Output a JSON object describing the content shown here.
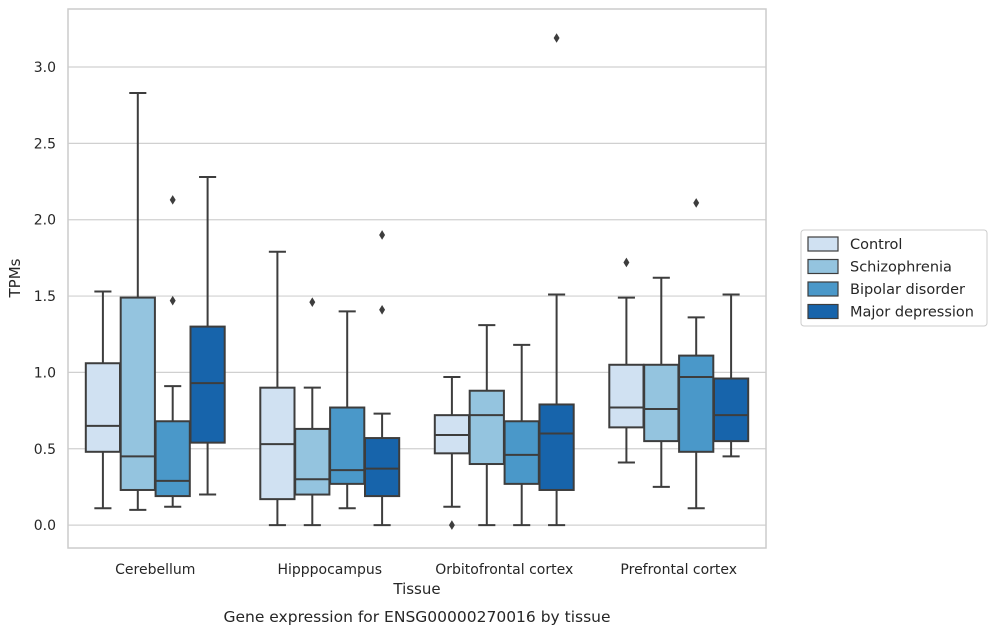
{
  "chart_data": {
    "type": "box",
    "caption": "Gene expression for ENSG00000270016 by tissue",
    "xlabel": "Tissue",
    "ylabel": "TPMs",
    "ylim": [
      -0.15,
      3.38
    ],
    "yticks": [
      0.0,
      0.5,
      1.0,
      1.5,
      2.0,
      2.5,
      3.0
    ],
    "ytick_labels": [
      "0.0",
      "0.5",
      "1.0",
      "1.5",
      "2.0",
      "2.5",
      "3.0"
    ],
    "grid": "horizontal",
    "legend_placement": "right",
    "categories": [
      "Cerebellum",
      "Hipppocampus",
      "Orbitofrontal cortex",
      "Prefrontal cortex"
    ],
    "series": [
      {
        "name": "Control",
        "color": "#d0e1f2",
        "boxes": [
          {
            "whislo": 0.11,
            "q1": 0.48,
            "med": 0.65,
            "q3": 1.06,
            "whishi": 1.53,
            "fliers": []
          },
          {
            "whislo": 0.0,
            "q1": 0.17,
            "med": 0.53,
            "q3": 0.9,
            "whishi": 1.79,
            "fliers": []
          },
          {
            "whislo": 0.12,
            "q1": 0.47,
            "med": 0.59,
            "q3": 0.72,
            "whishi": 0.97,
            "fliers": [
              0.0
            ]
          },
          {
            "whislo": 0.41,
            "q1": 0.64,
            "med": 0.77,
            "q3": 1.05,
            "whishi": 1.49,
            "fliers": [
              1.72
            ]
          }
        ]
      },
      {
        "name": "Schizophrenia",
        "color": "#94c4df",
        "boxes": [
          {
            "whislo": 0.1,
            "q1": 0.23,
            "med": 0.45,
            "q3": 1.49,
            "whishi": 2.83,
            "fliers": []
          },
          {
            "whislo": 0.0,
            "q1": 0.2,
            "med": 0.3,
            "q3": 0.63,
            "whishi": 0.9,
            "fliers": [
              1.46
            ]
          },
          {
            "whislo": 0.0,
            "q1": 0.4,
            "med": 0.72,
            "q3": 0.88,
            "whishi": 1.31,
            "fliers": []
          },
          {
            "whislo": 0.25,
            "q1": 0.55,
            "med": 0.76,
            "q3": 1.05,
            "whishi": 1.62,
            "fliers": []
          }
        ]
      },
      {
        "name": "Bipolar disorder",
        "color": "#4a98c9",
        "boxes": [
          {
            "whislo": 0.12,
            "q1": 0.19,
            "med": 0.29,
            "q3": 0.68,
            "whishi": 0.91,
            "fliers": [
              1.47,
              2.13
            ]
          },
          {
            "whislo": 0.11,
            "q1": 0.27,
            "med": 0.36,
            "q3": 0.77,
            "whishi": 1.4,
            "fliers": []
          },
          {
            "whislo": 0.0,
            "q1": 0.27,
            "med": 0.46,
            "q3": 0.68,
            "whishi": 1.18,
            "fliers": []
          },
          {
            "whislo": 0.11,
            "q1": 0.48,
            "med": 0.97,
            "q3": 1.11,
            "whishi": 1.36,
            "fliers": [
              2.11
            ]
          }
        ]
      },
      {
        "name": "Major depression",
        "color": "#1764ab",
        "boxes": [
          {
            "whislo": 0.2,
            "q1": 0.54,
            "med": 0.93,
            "q3": 1.3,
            "whishi": 2.28,
            "fliers": []
          },
          {
            "whislo": 0.0,
            "q1": 0.19,
            "med": 0.37,
            "q3": 0.57,
            "whishi": 0.73,
            "fliers": [
              1.41,
              1.9
            ]
          },
          {
            "whislo": 0.0,
            "q1": 0.23,
            "med": 0.6,
            "q3": 0.79,
            "whishi": 1.51,
            "fliers": [
              3.19
            ]
          },
          {
            "whislo": 0.45,
            "q1": 0.55,
            "med": 0.72,
            "q3": 0.96,
            "whishi": 1.51,
            "fliers": []
          }
        ]
      }
    ]
  }
}
